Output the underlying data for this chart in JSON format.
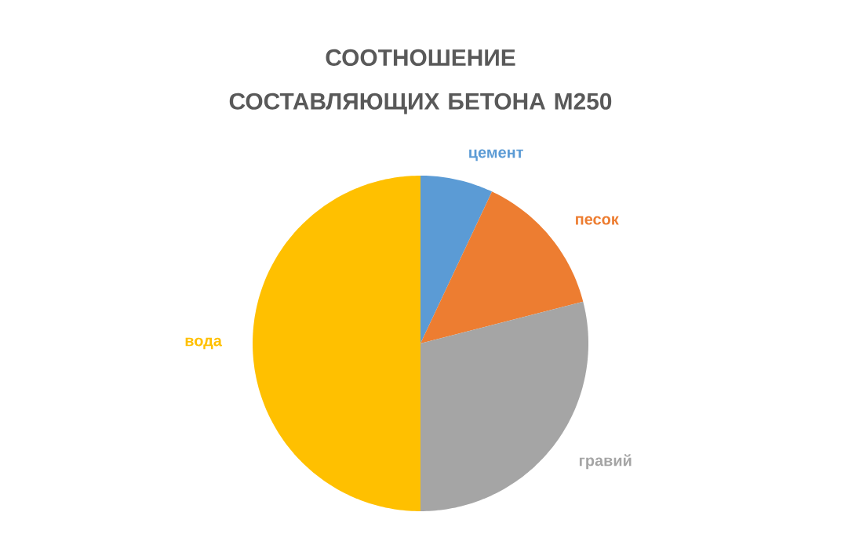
{
  "chart_data": {
    "type": "pie",
    "title": "СООТНОШЕНИЕ СОСТАВЛЯЮЩИХ БЕТОНА М250",
    "categories": [
      "цемент",
      "песок",
      "гравий",
      "вода"
    ],
    "values": [
      7,
      14,
      29,
      50
    ],
    "colors": [
      "#5b9bd5",
      "#ed7d31",
      "#a5a5a5",
      "#ffc000"
    ]
  }
}
